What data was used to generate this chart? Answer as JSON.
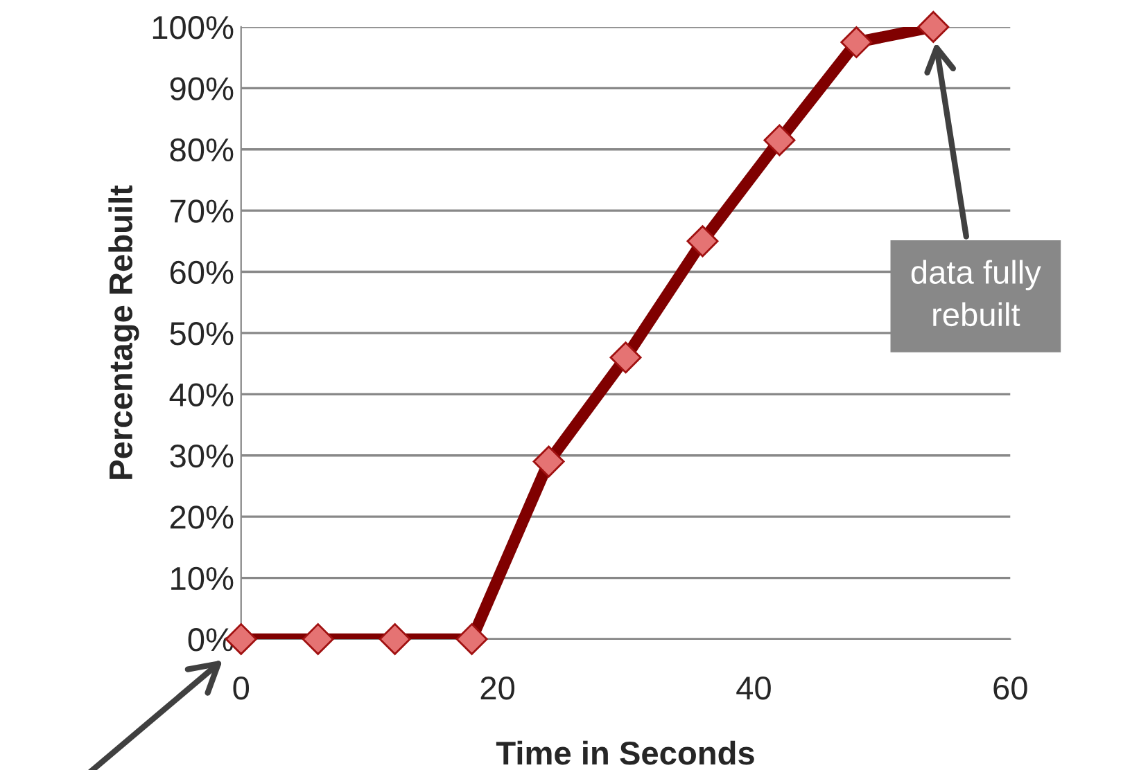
{
  "chart_data": {
    "type": "line",
    "xlabel": "Time in Seconds",
    "ylabel": "Percentage Rebuilt",
    "x": [
      0,
      6,
      12,
      18,
      24,
      30,
      36,
      42,
      48,
      54
    ],
    "series": [
      {
        "color": "#800000",
        "values": [
          0,
          0,
          0,
          0,
          29,
          46,
          65,
          81.5,
          97.5,
          100
        ]
      }
    ],
    "xlim": [
      0,
      60
    ],
    "xticks": [
      0,
      20,
      40,
      60
    ],
    "ylim": [
      0,
      100
    ],
    "yticks": [
      {
        "value": 0,
        "label": "0%"
      },
      {
        "value": 10,
        "label": "10%"
      },
      {
        "value": 20,
        "label": "20%"
      },
      {
        "value": 30,
        "label": "30%"
      },
      {
        "value": 40,
        "label": "40%"
      },
      {
        "value": 50,
        "label": "50%"
      },
      {
        "value": 60,
        "label": "60%"
      },
      {
        "value": 70,
        "label": "70%"
      },
      {
        "value": 80,
        "label": "80%"
      },
      {
        "value": 90,
        "label": "90%"
      },
      {
        "value": 100,
        "label": "100%"
      }
    ],
    "grid": "y",
    "marker": "diamond",
    "line_style": "solid",
    "annotations": [
      "data fully rebuilt"
    ]
  }
}
